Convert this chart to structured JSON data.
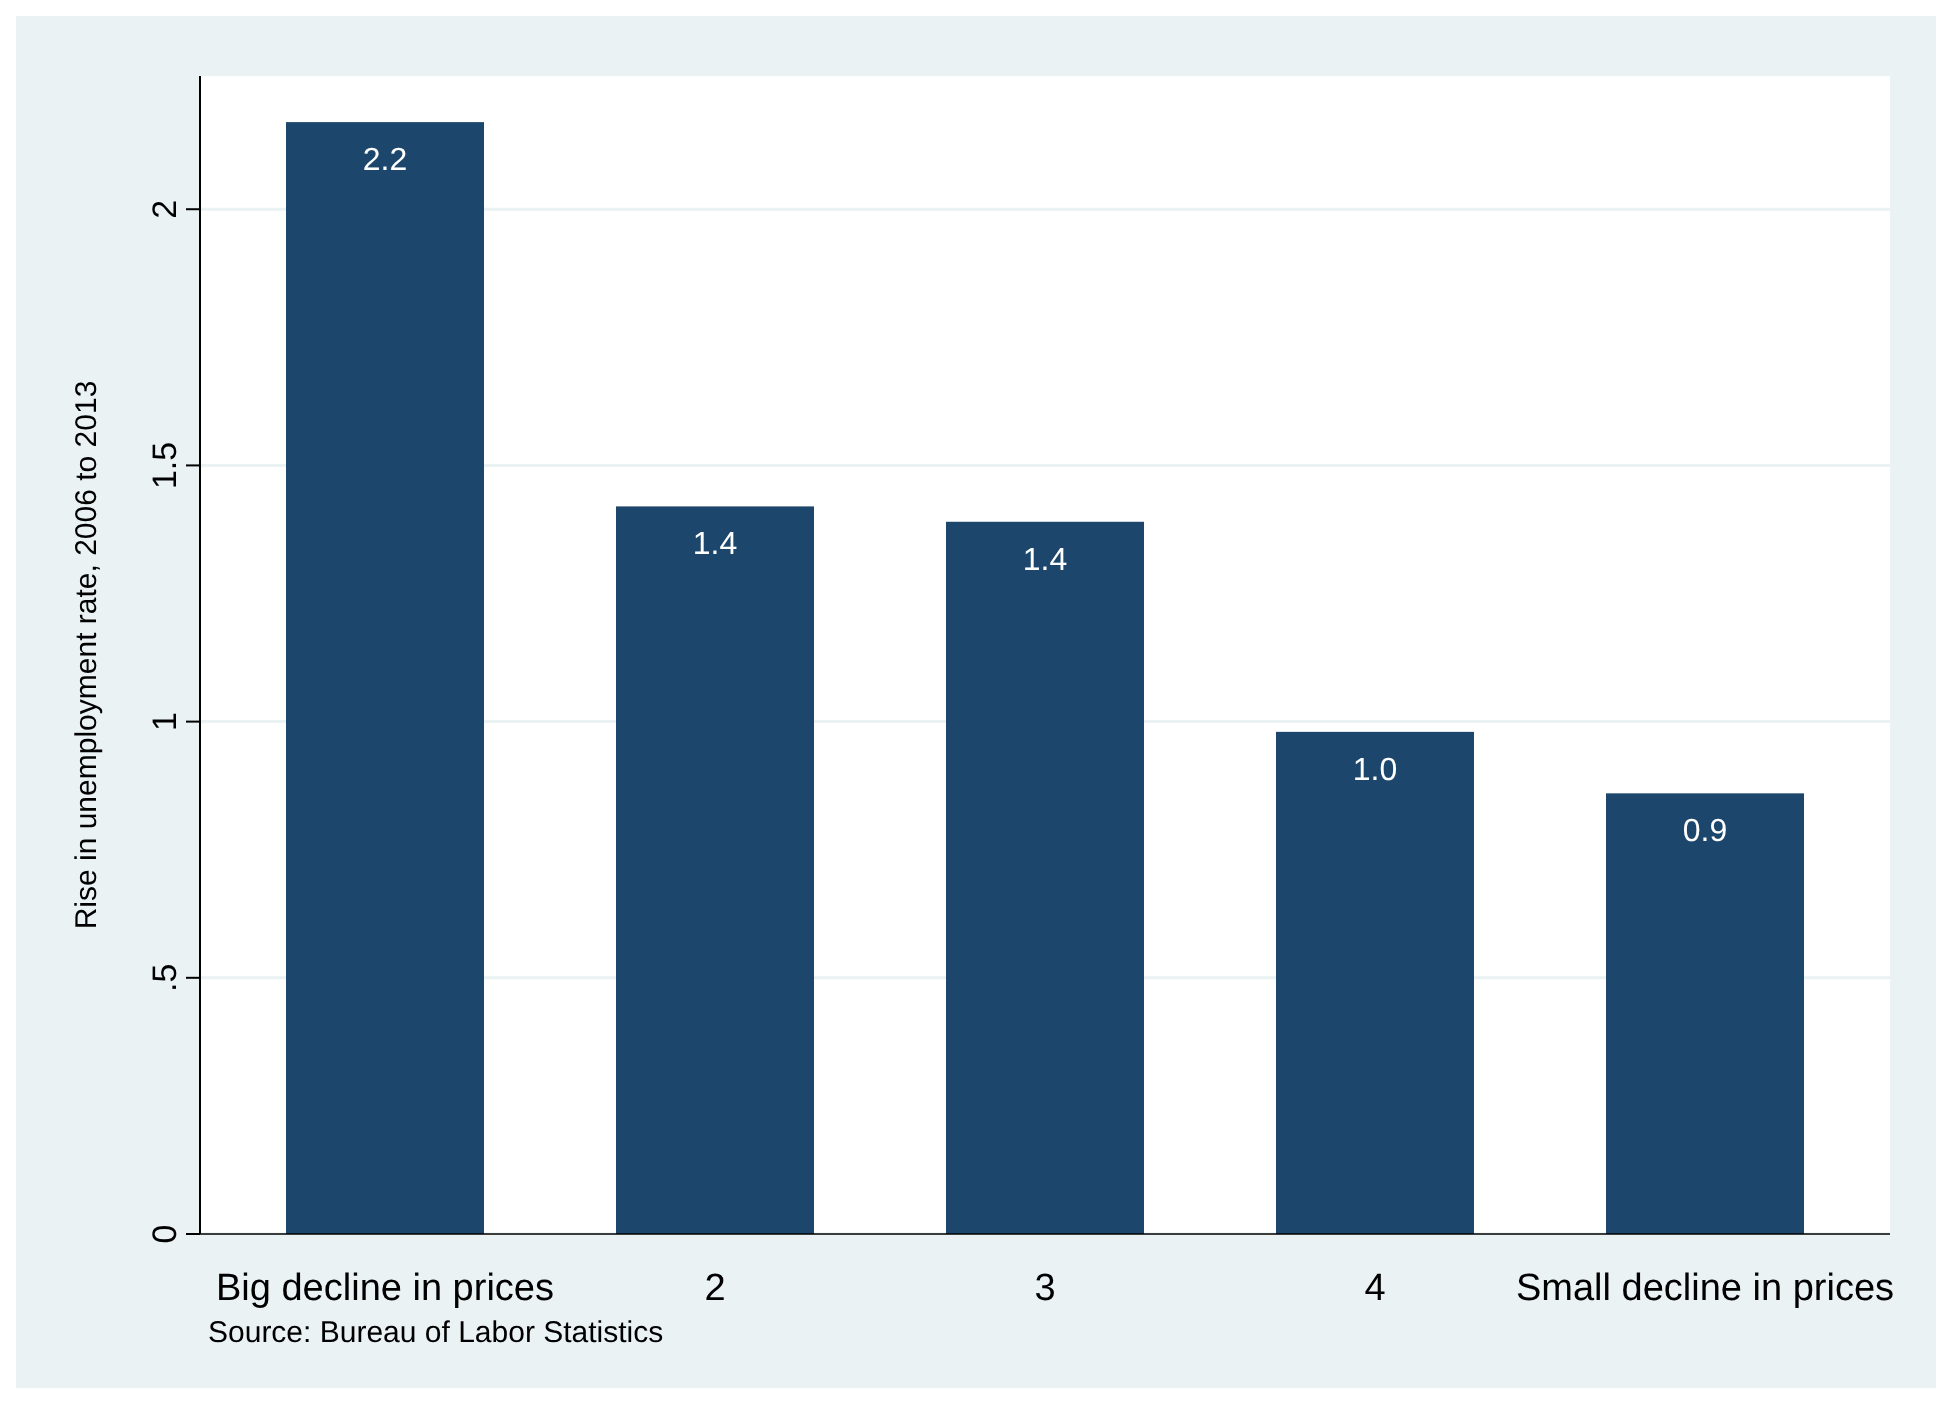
{
  "chart_data": {
    "type": "bar",
    "ylabel": "Rise in unemployment rate, 2006 to 2013",
    "categories": [
      "Big decline in prices",
      "2",
      "3",
      "4",
      "Small decline in prices"
    ],
    "values": [
      2.17,
      1.42,
      1.39,
      0.98,
      0.86
    ],
    "value_labels": [
      "2.2",
      "1.4",
      "1.4",
      "1.0",
      "0.9"
    ],
    "color": "#1c466b",
    "ylim": [
      0,
      2.26
    ],
    "yticks": [
      0,
      {
        "value": 0.5,
        "label": ".5"
      },
      1,
      1.5,
      2
    ],
    "grid": "y",
    "annotations": [
      "Source: Bureau of Labor Statistics"
    ]
  }
}
